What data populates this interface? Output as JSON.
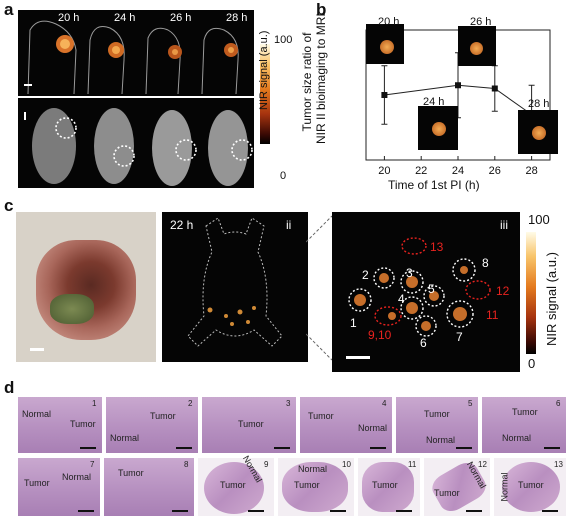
{
  "panel_a": {
    "letter": "a",
    "timepoints": [
      "20 h",
      "24 h",
      "26 h",
      "28 h"
    ],
    "colorbar_max": "100",
    "colorbar_min": "0",
    "colorbar_label": "NIR signal (a.u.)"
  },
  "panel_b": {
    "letter": "b",
    "ylabel_line1": "Tumor size ratio of",
    "ylabel_line2": "NIR II bioimaging to MRI",
    "xlabel": "Time of 1st PI (h)",
    "inset_labels": [
      "20 h",
      "26 h",
      "24 h",
      "28 h"
    ]
  },
  "chart_data": {
    "type": "line",
    "title": "",
    "xlabel": "Time of 1st PI (h)",
    "ylabel": "Tumor size ratio of NIR II bioimaging to MRI",
    "x": [
      20,
      24,
      26,
      28
    ],
    "series": [
      {
        "values": [
          1.0,
          1.15,
          1.1,
          0.7
        ],
        "errors": [
          0.45,
          0.5,
          0.35,
          0.45
        ]
      }
    ],
    "xticks": [
      20,
      22,
      24,
      26,
      28
    ],
    "xlim": [
      19,
      29
    ],
    "ylim": [
      0,
      2
    ],
    "grid": false
  },
  "panel_c": {
    "letter": "c",
    "time_label": "22 h",
    "sub_ii": "ii",
    "sub_iii": "iii",
    "tumor_white": [
      "1",
      "2",
      "3",
      "4",
      "5",
      "6",
      "7",
      "8"
    ],
    "tumor_red": [
      "9,10",
      "11",
      "12",
      "13"
    ],
    "colorbar_max": "100",
    "colorbar_min": "0",
    "colorbar_label": "NIR signal (a.u.)",
    "red_color": "#e8231f"
  },
  "panel_d": {
    "letter": "d",
    "row1": [
      {
        "num": "1",
        "labels": [
          "Normal",
          "Tumor"
        ]
      },
      {
        "num": "2",
        "labels": [
          "Tumor",
          "Normal"
        ]
      },
      {
        "num": "3",
        "labels": [
          "Tumor"
        ]
      },
      {
        "num": "4",
        "labels": [
          "Tumor",
          "Normal"
        ]
      },
      {
        "num": "5",
        "labels": [
          "Tumor",
          "Normal"
        ]
      },
      {
        "num": "6",
        "labels": [
          "Tumor",
          "Normal"
        ]
      }
    ],
    "row2": [
      {
        "num": "7",
        "labels": [
          "Tumor",
          "Normal"
        ]
      },
      {
        "num": "8",
        "labels": [
          "Tumor"
        ]
      },
      {
        "num": "9",
        "labels": [
          "Tumor",
          "Normal"
        ]
      },
      {
        "num": "10",
        "labels": [
          "Tumor",
          "Normal"
        ]
      },
      {
        "num": "11",
        "labels": [
          "Tumor"
        ]
      },
      {
        "num": "12",
        "labels": [
          "Tumor",
          "Normal"
        ]
      },
      {
        "num": "13",
        "labels": [
          "Tumor",
          "Normal"
        ]
      }
    ]
  }
}
